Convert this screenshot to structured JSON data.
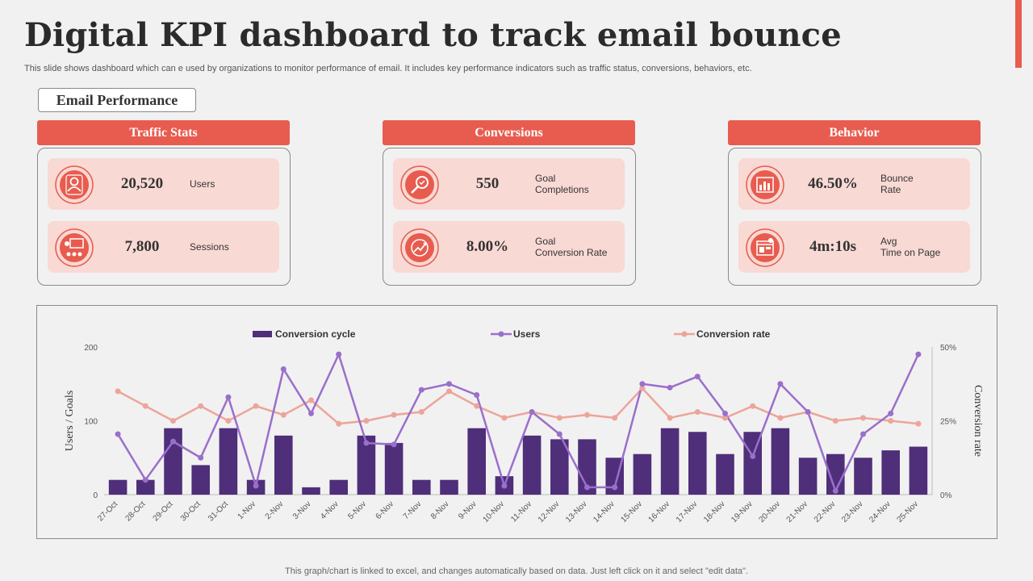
{
  "title": "Digital KPI dashboard to track email bounce",
  "subtitle": "This slide shows dashboard which can e used by organizations to monitor performance of email. It includes key performance indicators such as traffic status, conversions, behaviors, etc.",
  "section_label": "Email Performance",
  "groups": [
    {
      "header": "Traffic Stats",
      "kpis": [
        {
          "value": "20,520",
          "label": "Users",
          "icon": "user-icon"
        },
        {
          "value": "7,800",
          "label": "Sessions",
          "icon": "sessions-icon"
        }
      ]
    },
    {
      "header": "Conversions",
      "kpis": [
        {
          "value": "550",
          "label": "Goal\nCompletions",
          "icon": "magnifier-icon"
        },
        {
          "value": "8.00%",
          "label": "Goal\nConversion Rate",
          "icon": "growth-icon"
        }
      ]
    },
    {
      "header": "Behavior",
      "kpis": [
        {
          "value": "46.50%",
          "label": "Bounce\nRate",
          "icon": "bar-chart-icon"
        },
        {
          "value": "4m:10s",
          "label": "Avg\nTime on Page",
          "icon": "dashboard-icon"
        }
      ]
    }
  ],
  "colors": {
    "accent": "#e85c4f",
    "kpi_bg": "#f9d9d4",
    "bar": "#4f2e7a",
    "users_line": "#9a6fcb",
    "rate_line": "#eda49a"
  },
  "footer": "This graph/chart is linked to excel, and changes automatically based on data. Just left click on it and select \"edit data\".",
  "chart_data": {
    "type": "bar",
    "categories": [
      "27-Oct",
      "28-Oct",
      "29-Oct",
      "30-Oct",
      "31-Oct",
      "1-Nov",
      "2-Nov",
      "3-Nov",
      "4-Nov",
      "5-Nov",
      "6-Nov",
      "7-Nov",
      "8-Nov",
      "9-Nov",
      "10-Nov",
      "11-Nov",
      "12-Nov",
      "13-Nov",
      "14-Nov",
      "15-Nov",
      "16-Nov",
      "17-Nov",
      "18-Nov",
      "19-Nov",
      "20-Nov",
      "21-Nov",
      "22-Nov",
      "23-Nov",
      "24-Nov",
      "25-Nov"
    ],
    "series": [
      {
        "name": "Conversion cycle",
        "kind": "bar",
        "axis": "left",
        "values": [
          20,
          20,
          90,
          40,
          90,
          20,
          80,
          10,
          20,
          80,
          70,
          20,
          20,
          90,
          25,
          80,
          75,
          75,
          50,
          55,
          90,
          85,
          55,
          85,
          90,
          50,
          55,
          50,
          60,
          65
        ]
      },
      {
        "name": "Users",
        "kind": "line",
        "axis": "left",
        "values": [
          82,
          20,
          72,
          50,
          132,
          12,
          170,
          110,
          190,
          70,
          68,
          142,
          150,
          135,
          12,
          112,
          82,
          10,
          10,
          150,
          145,
          160,
          110,
          52,
          150,
          112,
          5,
          82,
          110,
          190
        ]
      },
      {
        "name": "Conversion rate",
        "kind": "line",
        "axis": "right",
        "values": [
          35,
          30,
          25,
          30,
          25,
          30,
          27,
          32,
          24,
          25,
          27,
          28,
          35,
          30,
          26,
          28,
          26,
          27,
          26,
          36,
          26,
          28,
          26,
          30,
          26,
          28,
          25,
          26,
          25,
          24
        ]
      }
    ],
    "left_axis": {
      "label": "Users / Goals",
      "ticks": [
        "0",
        "100",
        "200"
      ],
      "range": [
        0,
        200
      ]
    },
    "right_axis": {
      "label": "Conversion rate",
      "ticks": [
        "0%",
        "25%",
        "50%"
      ],
      "range": [
        0,
        50
      ]
    },
    "legend_position": "top"
  }
}
